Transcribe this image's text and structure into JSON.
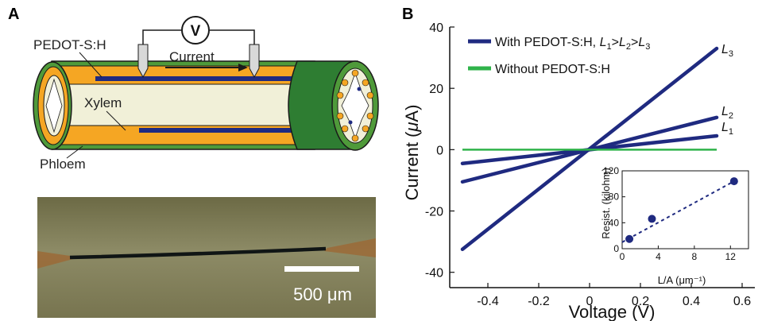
{
  "panel_a": {
    "letter": "A",
    "labels": {
      "pedot": "PEDOT-S:H",
      "current": "Current",
      "voltmeter": "V",
      "xylem": "Xylem",
      "phloem": "Phloem"
    },
    "scale_bar": "500 μm"
  },
  "panel_b": {
    "letter": "B",
    "legend": {
      "with_prefix": "With PEDOT-S:H, ",
      "order_L": "L",
      "sub1": "1",
      "sub2": "2",
      "sub3": "3",
      "gt": ">",
      "without": "Without PEDOT-S:H"
    },
    "curve_labels": {
      "L": "L",
      "s1": "1",
      "s2": "2",
      "s3": "3"
    },
    "axis": {
      "xlabel": "Voltage (V)",
      "ylabel_prefix": "Current (",
      "ylabel_mu": "μ",
      "ylabel_suffix": "A)"
    },
    "inset": {
      "xlabel": "L/A (μm⁻¹)",
      "ylabel": "Resist. (kilohm)"
    }
  },
  "colors": {
    "navy": "#1f2a80",
    "green": "#2fb34a",
    "orange": "#f5a623",
    "cream": "#f1f0d8",
    "dark_green": "#2e7d32"
  },
  "chart_data": [
    {
      "type": "line",
      "xlabel": "Voltage (V)",
      "ylabel": "Current (μA)",
      "xlim": [
        -0.55,
        0.65
      ],
      "ylim": [
        -45,
        40
      ],
      "xticks": [
        -0.4,
        -0.2,
        0,
        0.2,
        0.4,
        0.6
      ],
      "yticks": [
        -40,
        -20,
        0,
        20,
        40
      ],
      "series": [
        {
          "name": "L3",
          "x": [
            -0.5,
            0.5
          ],
          "y": [
            -32.5,
            33
          ]
        },
        {
          "name": "L2",
          "x": [
            -0.5,
            0.5
          ],
          "y": [
            -10.5,
            10.5
          ]
        },
        {
          "name": "L1",
          "x": [
            -0.5,
            0.5
          ],
          "y": [
            -4.5,
            4.5
          ]
        },
        {
          "name": "Without PEDOT-S:H",
          "x": [
            -0.5,
            0.5
          ],
          "y": [
            0,
            0
          ]
        }
      ]
    },
    {
      "type": "scatter",
      "xlabel": "L/A (μm⁻¹)",
      "ylabel": "Resist. (kilohm)",
      "xlim": [
        0,
        14
      ],
      "ylim": [
        0,
        120
      ],
      "xticks": [
        0,
        4,
        8,
        12
      ],
      "yticks": [
        0,
        40,
        80,
        120
      ],
      "points": {
        "x": [
          0.8,
          3.3,
          12.4
        ],
        "y": [
          15,
          46,
          104
        ]
      },
      "fit": {
        "x": [
          0,
          12.4
        ],
        "y": [
          10,
          104
        ]
      }
    }
  ]
}
